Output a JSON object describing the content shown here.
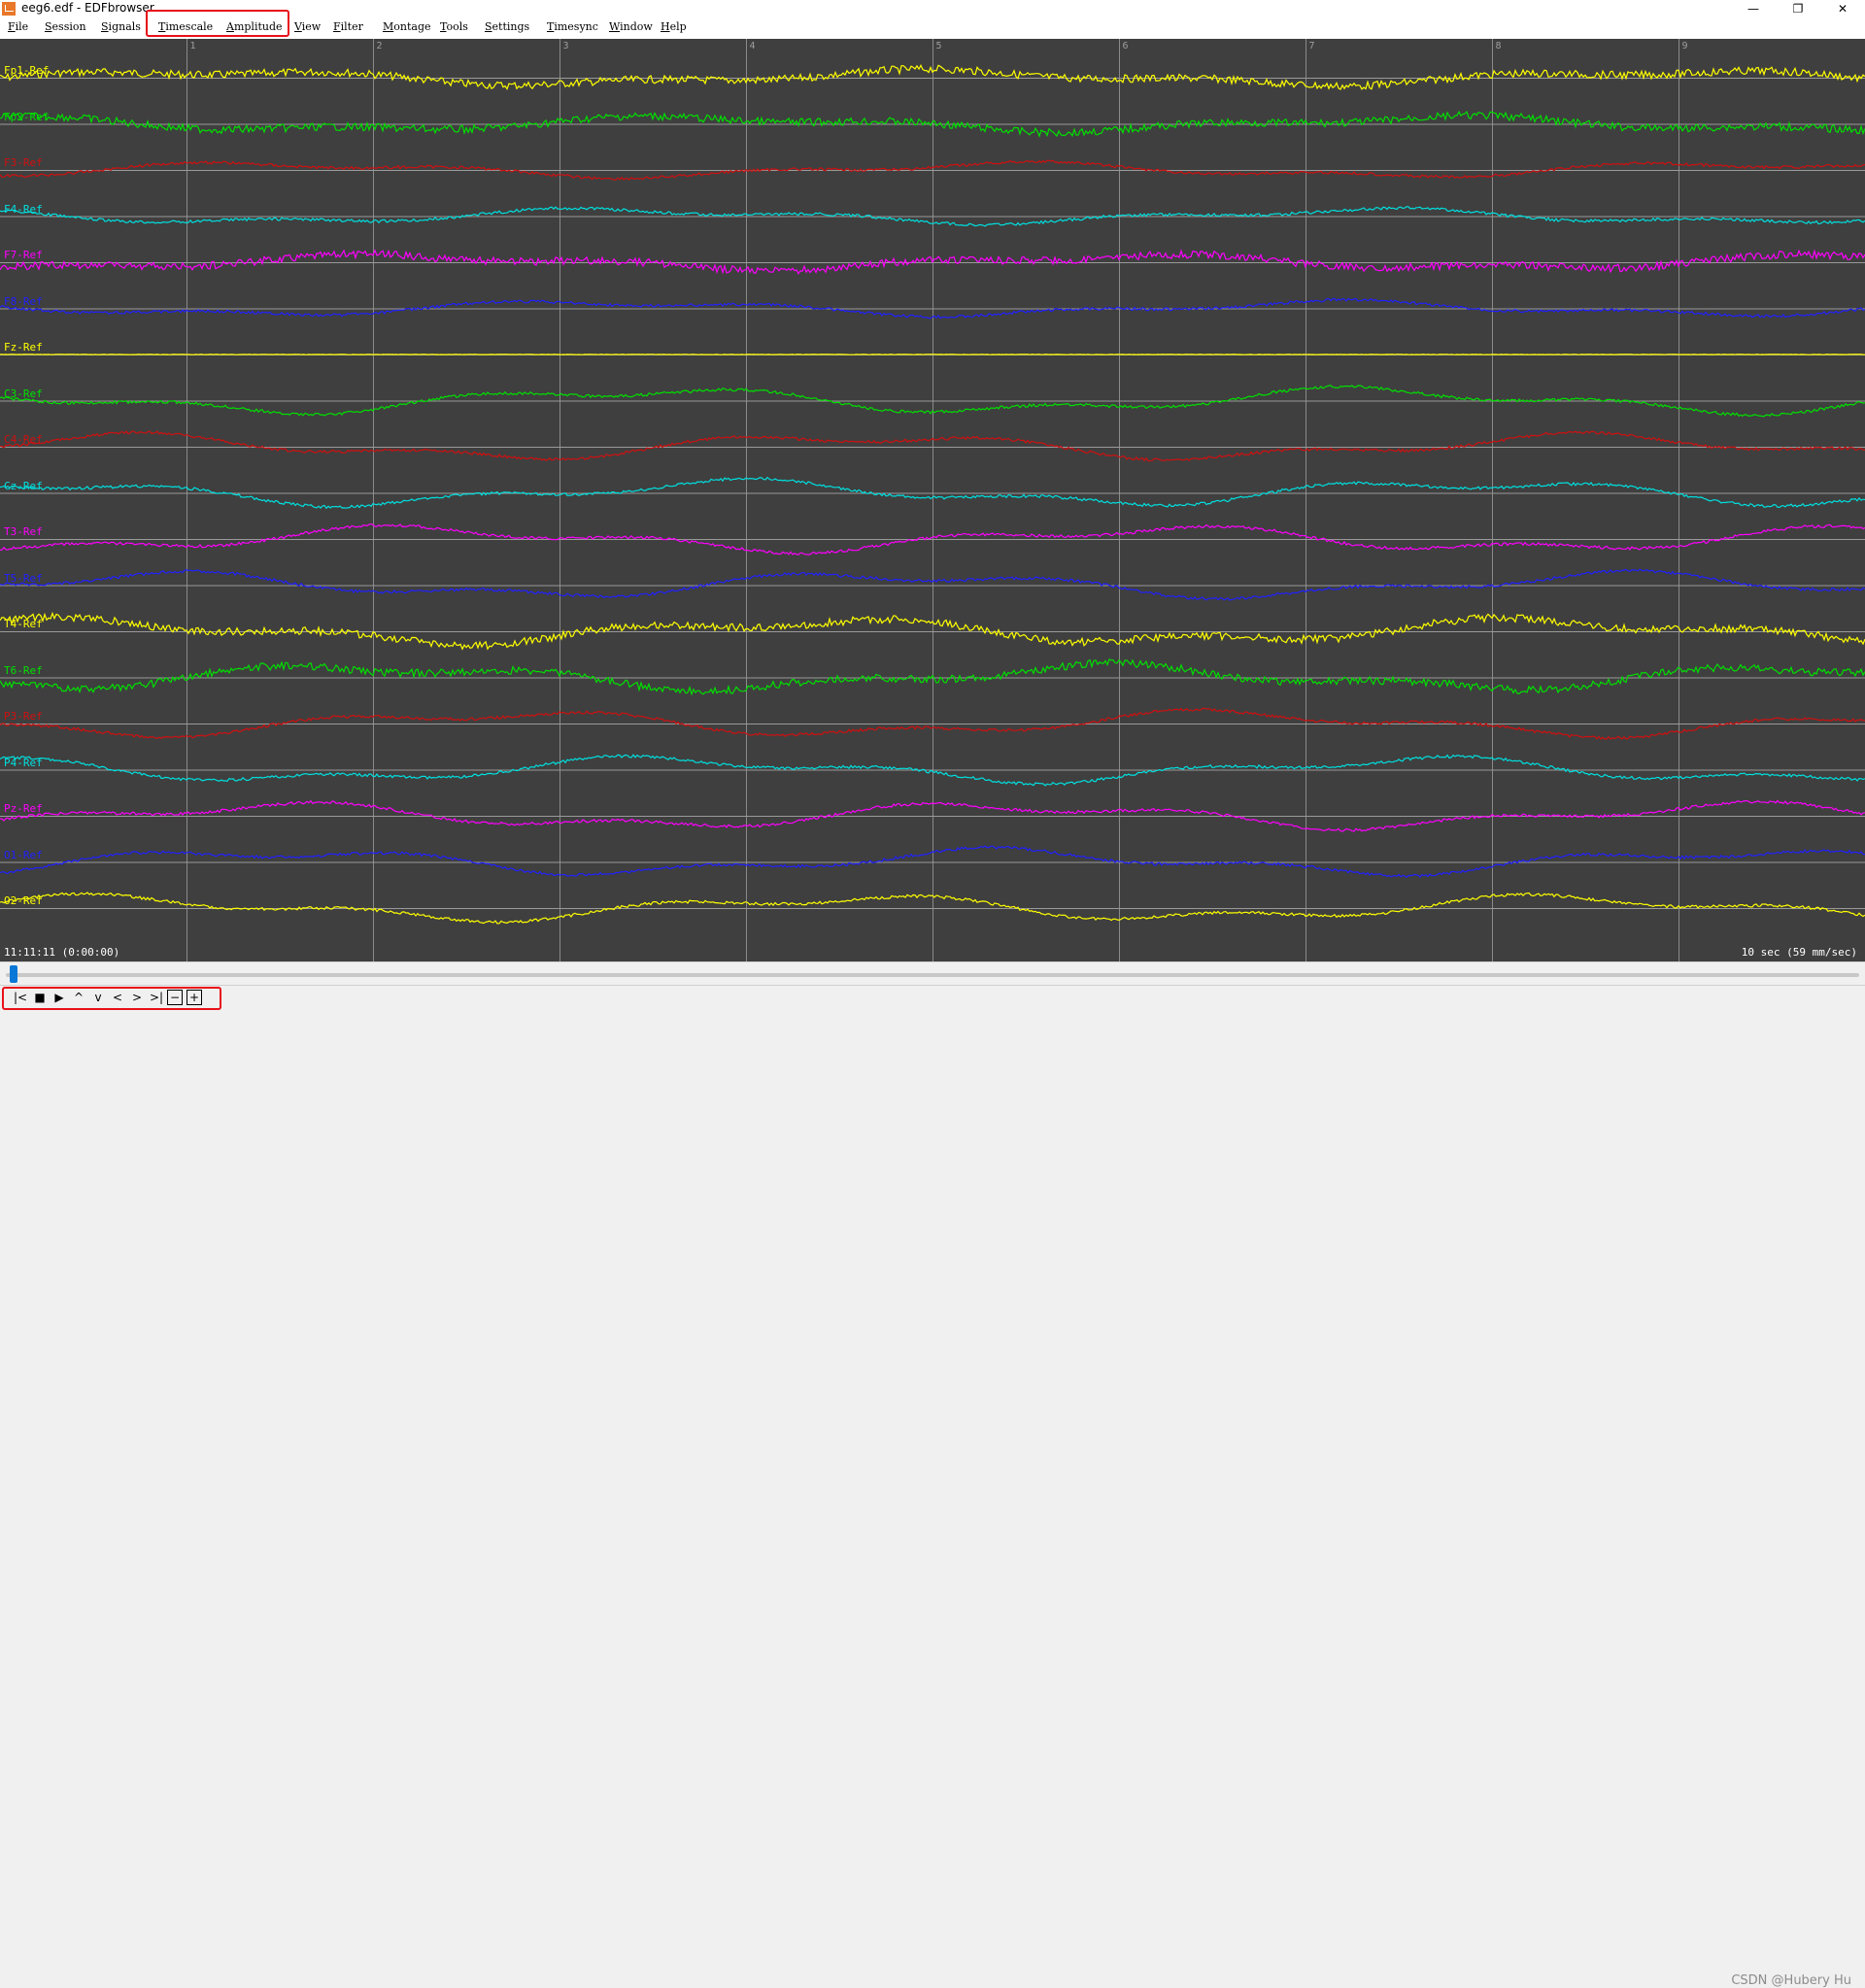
{
  "window": {
    "title": "eeg6.edf - EDFbrowser",
    "minimize": "—",
    "restore": "❐",
    "close": "✕"
  },
  "menu": [
    {
      "label": "File"
    },
    {
      "label": "Session"
    },
    {
      "label": "Signals"
    },
    {
      "label": "Timescale"
    },
    {
      "label": "Amplitude"
    },
    {
      "label": "View"
    },
    {
      "label": "Filter"
    },
    {
      "label": "Montage"
    },
    {
      "label": "Tools"
    },
    {
      "label": "Settings"
    },
    {
      "label": "Timesync"
    },
    {
      "label": "Window"
    },
    {
      "label": "Help"
    }
  ],
  "viewer": {
    "background": "#3f3f3f",
    "second_labels": [
      "1",
      "2",
      "3",
      "4",
      "5",
      "6",
      "7",
      "8",
      "9"
    ],
    "channels": [
      {
        "label": "Fp1-Ref",
        "color": "#ffff00"
      },
      {
        "label": "Fp2-Ref",
        "color": "#00e000"
      },
      {
        "label": "F3-Ref",
        "color": "#d01010"
      },
      {
        "label": "F4-Ref",
        "color": "#00e0e0"
      },
      {
        "label": "F7-Ref",
        "color": "#ff00ff"
      },
      {
        "label": "F8-Ref",
        "color": "#2020ff"
      },
      {
        "label": "Fz-Ref",
        "color": "#ffff00"
      },
      {
        "label": "C3-Ref",
        "color": "#00e000"
      },
      {
        "label": "C4-Ref",
        "color": "#d01010"
      },
      {
        "label": "Cz-Ref",
        "color": "#00e0e0"
      },
      {
        "label": "T3-Ref",
        "color": "#ff00ff"
      },
      {
        "label": "T5-Ref",
        "color": "#2020ff"
      },
      {
        "label": "T4-Ref",
        "color": "#ffff00"
      },
      {
        "label": "T6-Ref",
        "color": "#00e000"
      },
      {
        "label": "P3-Ref",
        "color": "#d01010"
      },
      {
        "label": "P4-Ref",
        "color": "#00e0e0"
      },
      {
        "label": "Pz-Ref",
        "color": "#ff00ff"
      },
      {
        "label": "O1-Ref",
        "color": "#2020ff"
      },
      {
        "label": "O2-Ref",
        "color": "#ffff00"
      }
    ],
    "time_start": "11:11:11 (0:00:00)",
    "time_scale": "10 sec  (59 mm/sec)"
  },
  "toolbar": {
    "buttons": [
      {
        "icon": "skip-to-start-icon",
        "glyph": "|<"
      },
      {
        "icon": "stop-icon",
        "glyph": "■"
      },
      {
        "icon": "play-icon",
        "glyph": "▶"
      },
      {
        "icon": "page-up-icon",
        "glyph": "^"
      },
      {
        "icon": "page-down-icon",
        "glyph": "v"
      },
      {
        "icon": "step-back-icon",
        "glyph": "<"
      },
      {
        "icon": "step-forward-icon",
        "glyph": ">"
      },
      {
        "icon": "skip-to-end-icon",
        "glyph": ">|"
      },
      {
        "icon": "zoom-out-icon",
        "glyph": "−"
      },
      {
        "icon": "zoom-in-icon",
        "glyph": "+"
      }
    ]
  },
  "watermark": "CSDN @Hubery Hu",
  "accent": {
    "highlight": "#e8101a",
    "scroll_thumb": "#0a78d7"
  }
}
